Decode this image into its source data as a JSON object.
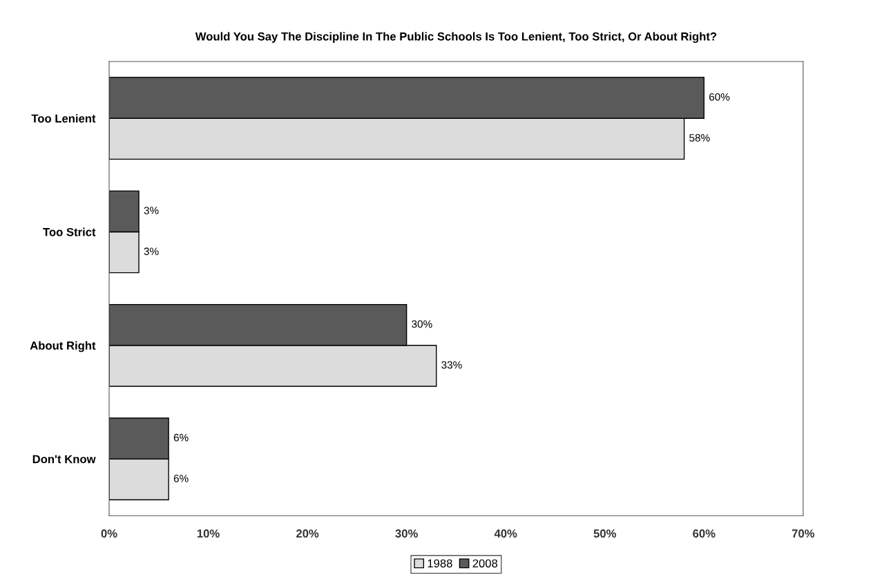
{
  "chart_data": {
    "type": "bar",
    "orientation": "horizontal",
    "title": "Would You Say The Discipline In The Public Schools Is Too Lenient, Too Strict, Or About Right?",
    "categories": [
      "Too Lenient",
      "Too Strict",
      "About Right",
      "Don't Know"
    ],
    "series": [
      {
        "name": "1988",
        "color": "#dcdcdc",
        "values": [
          58,
          3,
          33,
          6
        ],
        "value_labels": [
          "58%",
          "3%",
          "33%",
          "6%"
        ]
      },
      {
        "name": "2008",
        "color": "#5a5a5a",
        "values": [
          60,
          3,
          30,
          6
        ],
        "value_labels": [
          "60%",
          "3%",
          "30%",
          "6%"
        ]
      }
    ],
    "xlim": [
      0,
      70
    ],
    "xticks": [
      {
        "value": 0,
        "label": "0%"
      },
      {
        "value": 10,
        "label": "10%"
      },
      {
        "value": 20,
        "label": "20%"
      },
      {
        "value": 30,
        "label": "30%"
      },
      {
        "value": 40,
        "label": "40%"
      },
      {
        "value": 50,
        "label": "50%"
      },
      {
        "value": 60,
        "label": "60%"
      },
      {
        "value": 70,
        "label": "70%"
      }
    ],
    "legend": "bottom"
  }
}
